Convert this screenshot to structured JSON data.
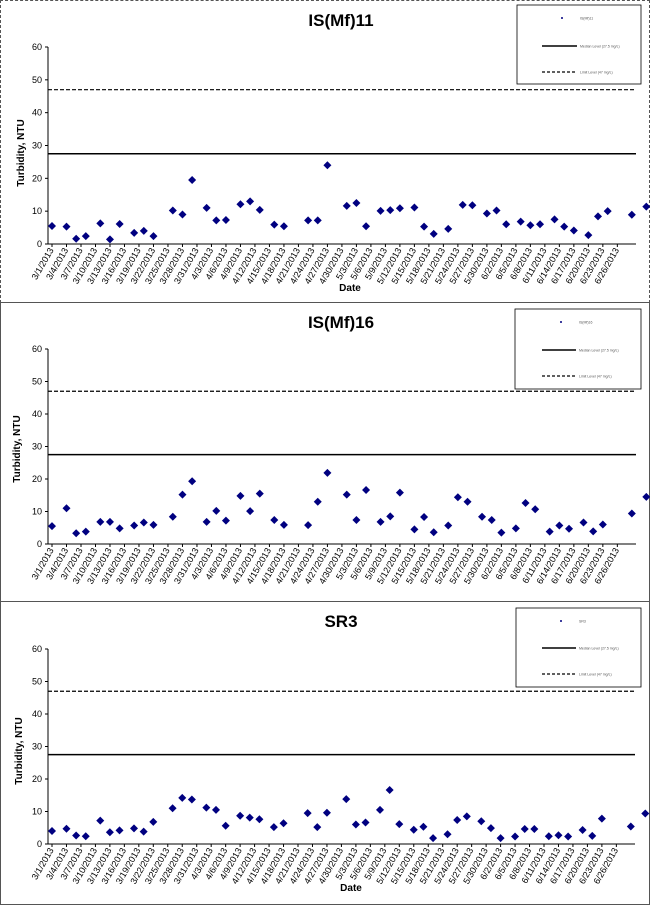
{
  "chart_data": [
    {
      "type": "scatter",
      "title": "IS(Mf)11",
      "xlabel": "Date",
      "ylabel": "Turbidity, NTU",
      "ylim": [
        0,
        60
      ],
      "yticks": [
        0,
        10,
        20,
        30,
        40,
        50,
        60
      ],
      "xlim": [
        "3/1/2013",
        "6/28/2013"
      ],
      "xtick_labels": [
        "3/1/2013",
        "3/4/2013",
        "3/7/2013",
        "3/10/2013",
        "3/13/2013",
        "3/16/2013",
        "3/19/2013",
        "3/22/2013",
        "3/25/2013",
        "3/28/2013",
        "3/31/2013",
        "4/3/2013",
        "4/6/2013",
        "4/9/2013",
        "4/12/2013",
        "4/15/2013",
        "4/18/2013",
        "4/21/2013",
        "4/24/2013",
        "4/27/2013",
        "4/30/2013",
        "5/3/2013",
        "5/6/2013",
        "5/9/2013",
        "5/12/2013",
        "5/15/2013",
        "5/18/2013",
        "5/21/2013",
        "5/24/2013",
        "5/27/2013",
        "5/30/2013",
        "6/2/2013",
        "6/5/2013",
        "6/8/2013",
        "6/11/2013",
        "6/14/2013",
        "6/17/2013",
        "6/20/2013",
        "6/23/2013",
        "6/26/2013"
      ],
      "legend": {
        "placement": "top-right",
        "entries": [
          {
            "label": "IS(Mf)11",
            "style": "point"
          },
          {
            "label": "Median Level (27.5 mg/L)",
            "style": "solid"
          },
          {
            "label": "Limit Level (47 mg/L)",
            "style": "dashed"
          }
        ]
      },
      "reference_lines": [
        {
          "value": 27.5,
          "style": "solid"
        },
        {
          "value": 47,
          "style": "dashed"
        }
      ],
      "points": [
        {
          "x": "3/1/2013",
          "y": 5.5
        },
        {
          "x": "3/4/2013",
          "y": 5.3
        },
        {
          "x": "3/6/2013",
          "y": 1.6
        },
        {
          "x": "3/8/2013",
          "y": 2.4
        },
        {
          "x": "3/11/2013",
          "y": 6.3
        },
        {
          "x": "3/13/2013",
          "y": 1.4
        },
        {
          "x": "3/15/2013",
          "y": 6.1
        },
        {
          "x": "3/18/2013",
          "y": 3.4
        },
        {
          "x": "3/20/2013",
          "y": 4.0
        },
        {
          "x": "3/22/2013",
          "y": 2.4
        },
        {
          "x": "3/26/2013",
          "y": 10.2
        },
        {
          "x": "3/28/2013",
          "y": 9.0
        },
        {
          "x": "3/30/2013",
          "y": 19.5
        },
        {
          "x": "4/2/2013",
          "y": 11.0
        },
        {
          "x": "4/4/2013",
          "y": 7.2
        },
        {
          "x": "4/6/2013",
          "y": 7.3
        },
        {
          "x": "4/9/2013",
          "y": 12.1
        },
        {
          "x": "4/11/2013",
          "y": 13.0
        },
        {
          "x": "4/13/2013",
          "y": 10.4
        },
        {
          "x": "4/16/2013",
          "y": 5.9
        },
        {
          "x": "4/18/2013",
          "y": 5.4
        },
        {
          "x": "4/23/2013",
          "y": 7.2
        },
        {
          "x": "4/25/2013",
          "y": 7.2
        },
        {
          "x": "4/27/2013",
          "y": 24.0
        },
        {
          "x": "5/1/2013",
          "y": 11.6
        },
        {
          "x": "5/3/2013",
          "y": 12.5
        },
        {
          "x": "5/5/2013",
          "y": 5.4
        },
        {
          "x": "5/8/2013",
          "y": 10.1
        },
        {
          "x": "5/10/2013",
          "y": 10.3
        },
        {
          "x": "5/12/2013",
          "y": 10.9
        },
        {
          "x": "5/15/2013",
          "y": 11.1
        },
        {
          "x": "5/17/2013",
          "y": 5.3
        },
        {
          "x": "5/19/2013",
          "y": 3.1
        },
        {
          "x": "5/22/2013",
          "y": 4.6
        },
        {
          "x": "5/25/2013",
          "y": 11.9
        },
        {
          "x": "5/27/2013",
          "y": 11.8
        },
        {
          "x": "5/30/2013",
          "y": 9.3
        },
        {
          "x": "6/1/2013",
          "y": 10.2
        },
        {
          "x": "6/3/2013",
          "y": 6.0
        },
        {
          "x": "6/6/2013",
          "y": 6.8
        },
        {
          "x": "6/8/2013",
          "y": 5.7
        },
        {
          "x": "6/10/2013",
          "y": 6.0
        },
        {
          "x": "6/13/2013",
          "y": 7.5
        },
        {
          "x": "6/15/2013",
          "y": 5.3
        },
        {
          "x": "6/17/2013",
          "y": 4.1
        },
        {
          "x": "6/20/2013",
          "y": 2.7
        },
        {
          "x": "6/22/2013",
          "y": 8.4
        },
        {
          "x": "6/24/2013",
          "y": 10.0
        },
        {
          "x": "6/29/2013",
          "y": 8.9
        },
        {
          "x": "7/2/2013",
          "y": 11.4
        }
      ]
    },
    {
      "type": "scatter",
      "title": "IS(Mf)16",
      "xlabel": "Date",
      "ylabel": "Turbidity, NTU",
      "ylim": [
        0,
        60
      ],
      "yticks": [
        0,
        10,
        20,
        30,
        40,
        50,
        60
      ],
      "xlim": [
        "3/1/2013",
        "6/28/2013"
      ],
      "xtick_labels": [
        "3/1/2013",
        "3/4/2013",
        "3/7/2013",
        "3/10/2013",
        "3/13/2013",
        "3/16/2013",
        "3/19/2013",
        "3/22/2013",
        "3/25/2013",
        "3/28/2013",
        "3/31/2013",
        "4/3/2013",
        "4/6/2013",
        "4/9/2013",
        "4/12/2013",
        "4/15/2013",
        "4/18/2013",
        "4/21/2013",
        "4/24/2013",
        "4/27/2013",
        "4/30/2013",
        "5/3/2013",
        "5/6/2013",
        "5/9/2013",
        "5/12/2013",
        "5/15/2013",
        "5/18/2013",
        "5/21/2013",
        "5/24/2013",
        "5/27/2013",
        "5/30/2013",
        "6/2/2013",
        "6/5/2013",
        "6/8/2013",
        "6/11/2013",
        "6/14/2013",
        "6/17/2013",
        "6/20/2013",
        "6/23/2013",
        "6/26/2013"
      ],
      "legend": {
        "placement": "top-right",
        "entries": [
          {
            "label": "IS(Mf)16",
            "style": "point"
          },
          {
            "label": "Median Level (27.5 mg/L)",
            "style": "solid"
          },
          {
            "label": "Limit Level (47 mg/L)",
            "style": "dashed"
          }
        ]
      },
      "reference_lines": [
        {
          "value": 27.5,
          "style": "solid"
        },
        {
          "value": 47,
          "style": "dashed"
        }
      ],
      "points": [
        {
          "x": "3/1/2013",
          "y": 5.5
        },
        {
          "x": "3/4/2013",
          "y": 11.0
        },
        {
          "x": "3/6/2013",
          "y": 3.3
        },
        {
          "x": "3/8/2013",
          "y": 3.8
        },
        {
          "x": "3/11/2013",
          "y": 6.8
        },
        {
          "x": "3/13/2013",
          "y": 6.8
        },
        {
          "x": "3/15/2013",
          "y": 4.8
        },
        {
          "x": "3/18/2013",
          "y": 5.7
        },
        {
          "x": "3/20/2013",
          "y": 6.6
        },
        {
          "x": "3/22/2013",
          "y": 5.9
        },
        {
          "x": "3/26/2013",
          "y": 8.4
        },
        {
          "x": "3/28/2013",
          "y": 15.2
        },
        {
          "x": "3/30/2013",
          "y": 19.3
        },
        {
          "x": "4/2/2013",
          "y": 6.8
        },
        {
          "x": "4/4/2013",
          "y": 10.2
        },
        {
          "x": "4/6/2013",
          "y": 7.2
        },
        {
          "x": "4/9/2013",
          "y": 14.8
        },
        {
          "x": "4/11/2013",
          "y": 10.1
        },
        {
          "x": "4/13/2013",
          "y": 15.5
        },
        {
          "x": "4/16/2013",
          "y": 7.4
        },
        {
          "x": "4/18/2013",
          "y": 5.9
        },
        {
          "x": "4/23/2013",
          "y": 5.8
        },
        {
          "x": "4/25/2013",
          "y": 13.0
        },
        {
          "x": "4/27/2013",
          "y": 21.9
        },
        {
          "x": "5/1/2013",
          "y": 15.2
        },
        {
          "x": "5/3/2013",
          "y": 7.4
        },
        {
          "x": "5/5/2013",
          "y": 16.6
        },
        {
          "x": "5/8/2013",
          "y": 6.8
        },
        {
          "x": "5/10/2013",
          "y": 8.5
        },
        {
          "x": "5/12/2013",
          "y": 15.8
        },
        {
          "x": "5/15/2013",
          "y": 4.5
        },
        {
          "x": "5/17/2013",
          "y": 8.3
        },
        {
          "x": "5/19/2013",
          "y": 3.6
        },
        {
          "x": "5/22/2013",
          "y": 5.7
        },
        {
          "x": "5/24/2013",
          "y": 14.4
        },
        {
          "x": "5/26/2013",
          "y": 13.0
        },
        {
          "x": "5/29/2013",
          "y": 8.4
        },
        {
          "x": "5/31/2013",
          "y": 7.4
        },
        {
          "x": "6/2/2013",
          "y": 3.5
        },
        {
          "x": "6/5/2013",
          "y": 4.8
        },
        {
          "x": "6/7/2013",
          "y": 12.6
        },
        {
          "x": "6/9/2013",
          "y": 10.7
        },
        {
          "x": "6/12/2013",
          "y": 3.8
        },
        {
          "x": "6/14/2013",
          "y": 5.7
        },
        {
          "x": "6/16/2013",
          "y": 4.7
        },
        {
          "x": "6/19/2013",
          "y": 6.6
        },
        {
          "x": "6/21/2013",
          "y": 3.9
        },
        {
          "x": "6/23/2013",
          "y": 6.0
        },
        {
          "x": "6/29/2013",
          "y": 9.4
        },
        {
          "x": "7/2/2013",
          "y": 14.5
        }
      ]
    },
    {
      "type": "scatter",
      "title": "SR3",
      "xlabel": "Date",
      "ylabel": "Turbidity, NTU",
      "ylim": [
        0,
        60
      ],
      "yticks": [
        0,
        10,
        20,
        30,
        40,
        50,
        60
      ],
      "xlim": [
        "3/1/2013",
        "6/28/2013"
      ],
      "xtick_labels": [
        "3/1/2013",
        "3/4/2013",
        "3/7/2013",
        "3/10/2013",
        "3/13/2013",
        "3/16/2013",
        "3/19/2013",
        "3/22/2013",
        "3/25/2013",
        "3/28/2013",
        "3/31/2013",
        "4/3/2013",
        "4/6/2013",
        "4/9/2013",
        "4/12/2013",
        "4/15/2013",
        "4/18/2013",
        "4/21/2013",
        "4/24/2013",
        "4/27/2013",
        "4/30/2013",
        "5/3/2013",
        "5/6/2013",
        "5/9/2013",
        "5/12/2013",
        "5/15/2013",
        "5/18/2013",
        "5/21/2013",
        "5/24/2013",
        "5/27/2013",
        "5/30/2013",
        "6/2/2013",
        "6/5/2013",
        "6/8/2013",
        "6/11/2013",
        "6/14/2013",
        "6/17/2013",
        "6/20/2013",
        "6/23/2013",
        "6/26/2013"
      ],
      "legend": {
        "placement": "top-right",
        "entries": [
          {
            "label": "SR3",
            "style": "point"
          },
          {
            "label": "Median Level (27.5 mg/L)",
            "style": "solid"
          },
          {
            "label": "Limit Level (47 mg/L)",
            "style": "dashed"
          }
        ]
      },
      "reference_lines": [
        {
          "value": 27.5,
          "style": "solid"
        },
        {
          "value": 47,
          "style": "dashed"
        }
      ],
      "points": [
        {
          "x": "3/1/2013",
          "y": 4.0
        },
        {
          "x": "3/4/2013",
          "y": 4.7
        },
        {
          "x": "3/6/2013",
          "y": 2.6
        },
        {
          "x": "3/8/2013",
          "y": 2.4
        },
        {
          "x": "3/11/2013",
          "y": 7.2
        },
        {
          "x": "3/13/2013",
          "y": 3.6
        },
        {
          "x": "3/15/2013",
          "y": 4.2
        },
        {
          "x": "3/18/2013",
          "y": 4.8
        },
        {
          "x": "3/20/2013",
          "y": 3.8
        },
        {
          "x": "3/22/2013",
          "y": 6.8
        },
        {
          "x": "3/26/2013",
          "y": 11.0
        },
        {
          "x": "3/28/2013",
          "y": 14.2
        },
        {
          "x": "3/30/2013",
          "y": 13.7
        },
        {
          "x": "4/2/2013",
          "y": 11.2
        },
        {
          "x": "4/4/2013",
          "y": 10.5
        },
        {
          "x": "4/6/2013",
          "y": 5.6
        },
        {
          "x": "4/9/2013",
          "y": 8.7
        },
        {
          "x": "4/11/2013",
          "y": 8.1
        },
        {
          "x": "4/13/2013",
          "y": 7.6
        },
        {
          "x": "4/16/2013",
          "y": 5.2
        },
        {
          "x": "4/18/2013",
          "y": 6.4
        },
        {
          "x": "4/23/2013",
          "y": 9.5
        },
        {
          "x": "4/25/2013",
          "y": 5.2
        },
        {
          "x": "4/27/2013",
          "y": 9.6
        },
        {
          "x": "5/1/2013",
          "y": 13.8
        },
        {
          "x": "5/3/2013",
          "y": 6.0
        },
        {
          "x": "5/5/2013",
          "y": 6.6
        },
        {
          "x": "5/8/2013",
          "y": 10.5
        },
        {
          "x": "5/10/2013",
          "y": 16.6
        },
        {
          "x": "5/12/2013",
          "y": 6.1
        },
        {
          "x": "5/15/2013",
          "y": 4.4
        },
        {
          "x": "5/17/2013",
          "y": 5.3
        },
        {
          "x": "5/19/2013",
          "y": 1.8
        },
        {
          "x": "5/22/2013",
          "y": 3.0
        },
        {
          "x": "5/24/2013",
          "y": 7.4
        },
        {
          "x": "5/26/2013",
          "y": 8.5
        },
        {
          "x": "5/29/2013",
          "y": 7.0
        },
        {
          "x": "5/31/2013",
          "y": 4.9
        },
        {
          "x": "6/2/2013",
          "y": 1.8
        },
        {
          "x": "6/5/2013",
          "y": 2.3
        },
        {
          "x": "6/7/2013",
          "y": 4.6
        },
        {
          "x": "6/9/2013",
          "y": 4.6
        },
        {
          "x": "6/12/2013",
          "y": 2.4
        },
        {
          "x": "6/14/2013",
          "y": 2.7
        },
        {
          "x": "6/16/2013",
          "y": 2.3
        },
        {
          "x": "6/19/2013",
          "y": 4.3
        },
        {
          "x": "6/21/2013",
          "y": 2.5
        },
        {
          "x": "6/23/2013",
          "y": 7.8
        },
        {
          "x": "6/29/2013",
          "y": 5.4
        },
        {
          "x": "7/2/2013",
          "y": 9.4
        }
      ]
    }
  ],
  "colors": {
    "marker": "#000080",
    "line": "#000000",
    "frame": "#000000",
    "background": "#ffffff"
  }
}
